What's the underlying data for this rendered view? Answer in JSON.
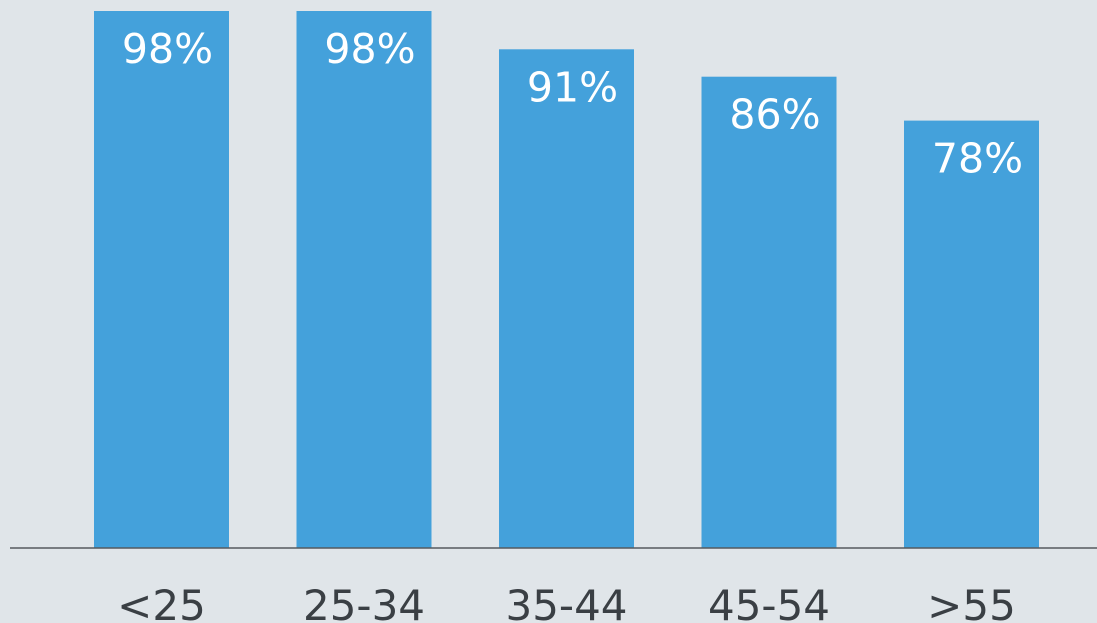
{
  "chart_data": {
    "type": "bar",
    "categories": [
      "<25",
      "25-34",
      "35-44",
      "45-54",
      ">55"
    ],
    "values": [
      98,
      98,
      91,
      86,
      78
    ],
    "value_labels": [
      "98%",
      "98%",
      "91%",
      "86%",
      "78%"
    ],
    "title": "",
    "xlabel": "",
    "ylabel": "",
    "ylim": [
      0,
      100
    ],
    "grid": false,
    "legend": "none"
  },
  "colors": {
    "bar": "#44a1db",
    "background": "#e0e5e9",
    "axis": "#555a5f",
    "tick_text": "#3a3f44",
    "value_text": "#ffffff"
  }
}
